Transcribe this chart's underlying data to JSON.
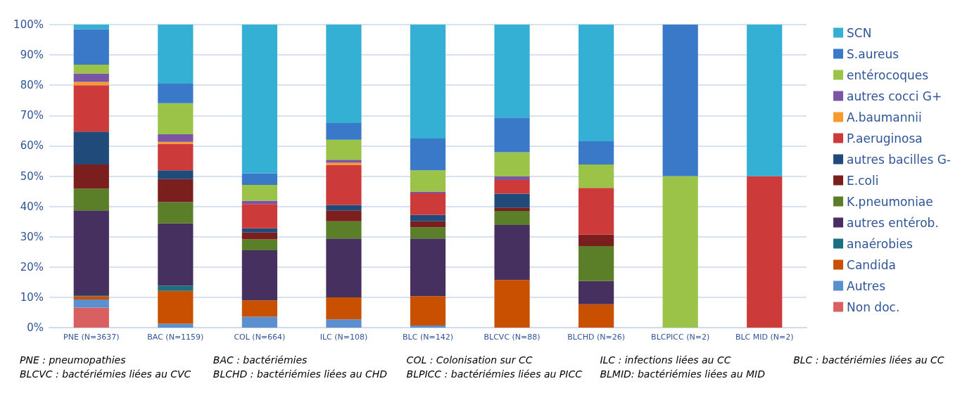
{
  "chart_data": {
    "type": "bar",
    "stacked": true,
    "categories": [
      "PNE (N=3637)",
      "BAC (N=1159)",
      "COL (N=664)",
      "ILC (N=108)",
      "BLC (N=142)",
      "BLCVC (N=88)",
      "BLCHD (N=26)",
      "BLCPICC (N=2)",
      "BLC MID (N=2)"
    ],
    "series": [
      {
        "name": "Non doc.",
        "color": "#d96060",
        "values": [
          6.6,
          0,
          0,
          0,
          0,
          0,
          0,
          0,
          0
        ]
      },
      {
        "name": "Autres",
        "color": "#5b8fd0",
        "values": [
          2.7,
          1.3,
          3.6,
          2.7,
          0.7,
          0,
          0,
          0,
          0
        ]
      },
      {
        "name": "Candida",
        "color": "#c85000",
        "values": [
          1.1,
          10.8,
          5.4,
          7.3,
          9.7,
          15.7,
          7.7,
          0,
          0
        ]
      },
      {
        "name": "anaérobies",
        "color": "#1b6f80",
        "values": [
          0.3,
          1.7,
          0,
          0,
          0,
          0,
          0,
          0,
          0
        ]
      },
      {
        "name": "autres entérob.",
        "color": "#45305f",
        "values": [
          28.0,
          20.6,
          16.5,
          19.4,
          19.0,
          18.2,
          7.7,
          0,
          0
        ]
      },
      {
        "name": "K.pneumoniae",
        "color": "#5a7f28",
        "values": [
          7.2,
          7.0,
          3.6,
          5.7,
          3.7,
          4.6,
          11.5,
          0,
          0
        ]
      },
      {
        "name": "E.coli",
        "color": "#7a1e1e",
        "values": [
          7.9,
          7.6,
          2.3,
          3.6,
          2.0,
          1.1,
          3.8,
          0,
          0
        ]
      },
      {
        "name": "autres bacilles G-",
        "color": "#1f4a7a",
        "values": [
          10.9,
          2.9,
          1.4,
          1.8,
          2.1,
          4.6,
          0,
          0,
          0
        ]
      },
      {
        "name": "P.aeruginosa",
        "color": "#cc3b3a",
        "values": [
          15.3,
          8.8,
          8.0,
          13.1,
          7.1,
          4.5,
          15.4,
          0,
          50
        ]
      },
      {
        "name": "A.baumannii",
        "color": "#f79a2e",
        "values": [
          1.1,
          0.6,
          0,
          0.8,
          0,
          0,
          0,
          0,
          0
        ]
      },
      {
        "name": "autres cocci G+",
        "color": "#7b55a3",
        "values": [
          2.8,
          2.5,
          1.1,
          1.0,
          0.6,
          1.2,
          0,
          0,
          0
        ]
      },
      {
        "name": "entérocoques",
        "color": "#9bc348",
        "values": [
          2.9,
          10.3,
          5.2,
          6.6,
          7.0,
          8.0,
          7.7,
          50,
          0
        ]
      },
      {
        "name": "S.aureus",
        "color": "#3a78c8",
        "values": [
          11.7,
          6.4,
          3.8,
          5.5,
          10.5,
          11.4,
          7.7,
          50,
          0
        ]
      },
      {
        "name": "SCN",
        "color": "#33b0d4",
        "values": [
          1.5,
          19.5,
          49.1,
          32.5,
          37.6,
          30.7,
          38.5,
          0,
          50
        ]
      }
    ],
    "ylim": [
      0,
      100
    ],
    "yticks": [
      {
        "value": 0,
        "label": "0%"
      },
      {
        "value": 10,
        "label": "10%"
      },
      {
        "value": 20,
        "label": "20%"
      },
      {
        "value": 30,
        "label": "30%"
      },
      {
        "value": 40,
        "label": "40%"
      },
      {
        "value": 50,
        "label": "50%"
      },
      {
        "value": 60,
        "label": "60%"
      },
      {
        "value": 70,
        "label": "70%"
      },
      {
        "value": 80,
        "label": "80%"
      },
      {
        "value": 90,
        "label": "90%"
      },
      {
        "value": 100,
        "label": "100%"
      }
    ],
    "grid": "y",
    "legend": "right",
    "annotations": [
      "PNE : pneumopathies",
      "BAC : bactériémies",
      "COL : Colonisation sur CC",
      "ILC : infections liées au CC",
      "BLC : bactériémies liées au CC",
      "BLCVC : bactériémies liées au CVC",
      "BLCHD : bactériémies liées au CHD",
      "BLPICC : bactériémies liées au PICC",
      "BLMID: bactériémies liées au MID"
    ]
  }
}
